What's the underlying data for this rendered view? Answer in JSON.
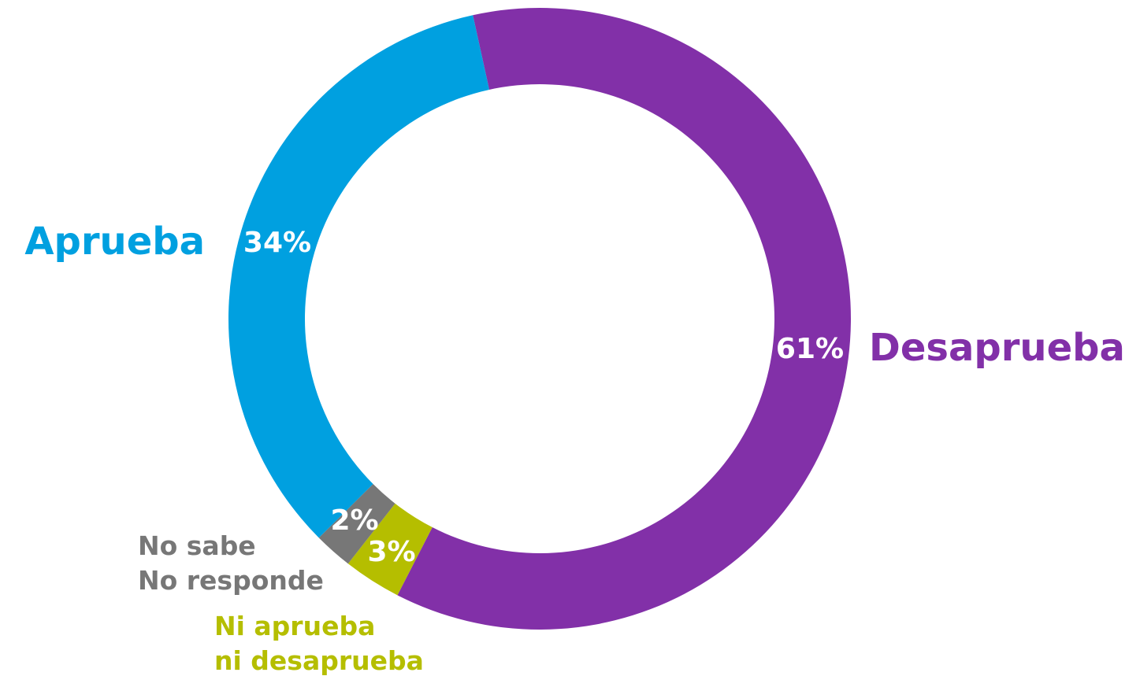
{
  "chart_data": {
    "type": "donut",
    "categories": [
      "Desaprueba",
      "Ni aprueba\nni desaprueba",
      "No sabe\nNo responde",
      "Aprueba"
    ],
    "values": [
      61,
      3,
      2,
      34
    ],
    "value_labels": [
      "61%",
      "3%",
      "2%",
      "34%"
    ],
    "colors": [
      "#8230a8",
      "#b5be00",
      "#777777",
      "#00a0e0"
    ]
  }
}
